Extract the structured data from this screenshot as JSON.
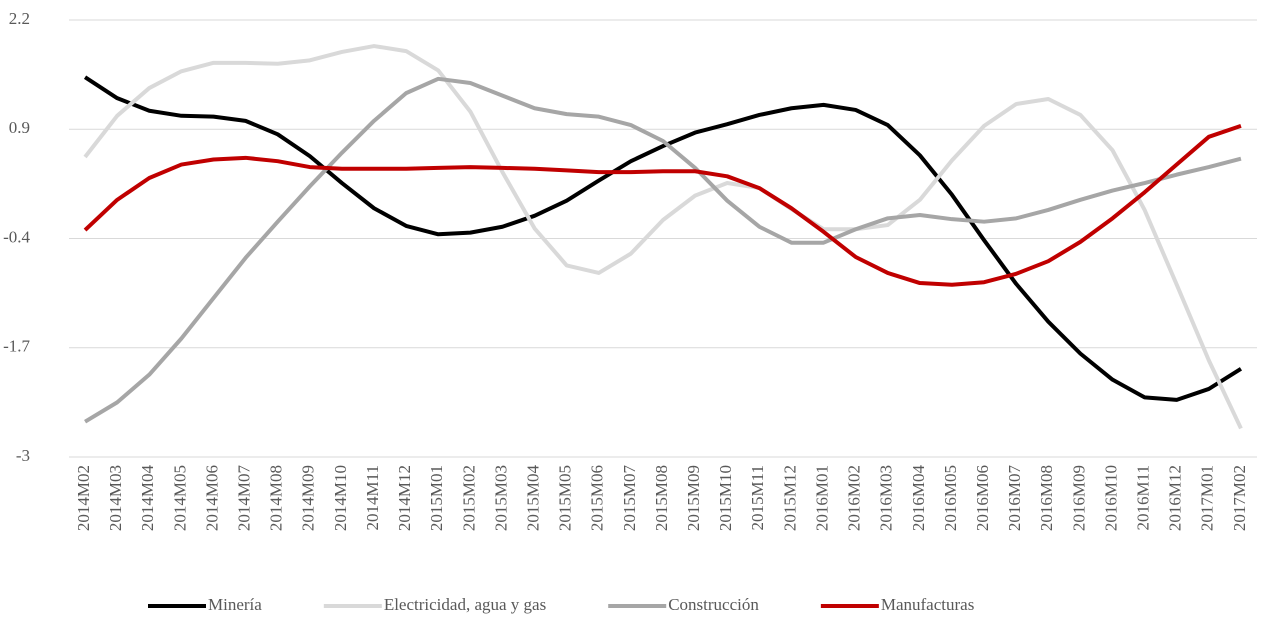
{
  "chart_data": {
    "type": "line",
    "categories": [
      "2014M02",
      "2014M03",
      "2014M04",
      "2014M05",
      "2014M06",
      "2014M07",
      "2014M08",
      "2014M09",
      "2014M10",
      "2014M11",
      "2014M12",
      "2015M01",
      "2015M02",
      "2015M03",
      "2015M04",
      "2015M05",
      "2015M06",
      "2015M07",
      "2015M08",
      "2015M09",
      "2015M10",
      "2015M11",
      "2015M12",
      "2016M01",
      "2016M02",
      "2016M03",
      "2016M04",
      "2016M05",
      "2016M06",
      "2016M07",
      "2016M08",
      "2016M09",
      "2016M10",
      "2016M11",
      "2016M12",
      "2017M01",
      "2017M02"
    ],
    "series": [
      {
        "name": "Minería",
        "color": "#000000",
        "values": [
          1.52,
          1.27,
          1.12,
          1.06,
          1.05,
          1.0,
          0.84,
          0.58,
          0.26,
          -0.04,
          -0.25,
          -0.35,
          -0.33,
          -0.26,
          -0.13,
          0.05,
          0.29,
          0.52,
          0.7,
          0.86,
          0.96,
          1.07,
          1.15,
          1.19,
          1.13,
          0.95,
          0.59,
          0.12,
          -0.42,
          -0.94,
          -1.39,
          -1.77,
          -2.08,
          -2.29,
          -2.32,
          -2.19,
          -1.95
        ]
      },
      {
        "name": "Electricidad, agua y gas",
        "color": "#d9d9d9",
        "values": [
          0.57,
          1.06,
          1.39,
          1.59,
          1.69,
          1.69,
          1.68,
          1.72,
          1.82,
          1.89,
          1.83,
          1.6,
          1.11,
          0.39,
          -0.28,
          -0.72,
          -0.81,
          -0.58,
          -0.18,
          0.11,
          0.26,
          0.2,
          -0.05,
          -0.29,
          -0.29,
          -0.24,
          0.06,
          0.53,
          0.94,
          1.2,
          1.26,
          1.07,
          0.65,
          -0.06,
          -0.95,
          -1.85,
          -2.66
        ]
      },
      {
        "name": "Construcción",
        "color": "#a6a6a6",
        "values": [
          -2.58,
          -2.35,
          -2.02,
          -1.59,
          -1.11,
          -0.63,
          -0.2,
          0.22,
          0.62,
          1.0,
          1.33,
          1.5,
          1.45,
          1.3,
          1.15,
          1.08,
          1.05,
          0.95,
          0.76,
          0.44,
          0.05,
          -0.26,
          -0.45,
          -0.45,
          -0.29,
          -0.16,
          -0.12,
          -0.17,
          -0.2,
          -0.16,
          -0.06,
          0.06,
          0.17,
          0.26,
          0.36,
          0.45,
          0.55
        ]
      },
      {
        "name": "Manufacturas",
        "color": "#c00000",
        "values": [
          -0.3,
          0.06,
          0.32,
          0.48,
          0.54,
          0.56,
          0.52,
          0.45,
          0.43,
          0.43,
          0.43,
          0.44,
          0.45,
          0.44,
          0.43,
          0.41,
          0.39,
          0.39,
          0.4,
          0.4,
          0.34,
          0.2,
          -0.04,
          -0.32,
          -0.62,
          -0.81,
          -0.93,
          -0.95,
          -0.92,
          -0.82,
          -0.67,
          -0.44,
          -0.16,
          0.15,
          0.48,
          0.81,
          0.94
        ]
      }
    ],
    "ylim": [
      -3,
      2.2
    ],
    "yticks": [
      2.2,
      0.9,
      -0.4,
      -1.7,
      -3
    ],
    "grid": true,
    "legend": "bottom"
  }
}
